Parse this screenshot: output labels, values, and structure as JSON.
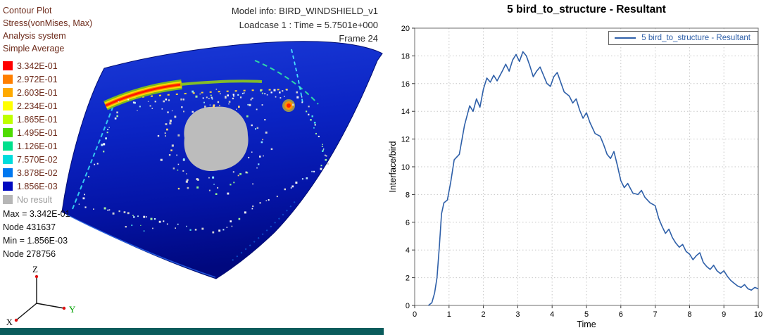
{
  "left_panel": {
    "header_lines": [
      "Contour Plot",
      "Stress(vonMises, Max)",
      "Analysis system",
      "Simple Average"
    ],
    "text_color": "#6e2c1c",
    "legend": {
      "entries": [
        {
          "color": "#ff0000",
          "value": "3.342E-01"
        },
        {
          "color": "#ff7f00",
          "value": "2.972E-01"
        },
        {
          "color": "#ffaa00",
          "value": "2.603E-01"
        },
        {
          "color": "#ffff00",
          "value": "2.234E-01"
        },
        {
          "color": "#bfff00",
          "value": "1.865E-01"
        },
        {
          "color": "#4fdc00",
          "value": "1.495E-01"
        },
        {
          "color": "#00e08c",
          "value": "1.126E-01"
        },
        {
          "color": "#00dcdc",
          "value": "7.570E-02"
        },
        {
          "color": "#0078f0",
          "value": "3.878E-02"
        },
        {
          "color": "#0008c0",
          "value": "1.856E-03"
        }
      ],
      "no_result": {
        "color": "#b6b6b6",
        "label": "No result",
        "text_color": "#9b9b9b"
      }
    },
    "stats_lines": [
      "Max = 3.342E-01",
      "Node 431637",
      "Min = 1.856E-03",
      "Node 278756"
    ],
    "model_info_lines": [
      "Model info: BIRD_WINDSHIELD_v1",
      "Loadcase 1 : Time = 5.7501e+000",
      "Frame 24"
    ],
    "triad": {
      "x_label": "X",
      "y_label": "Y",
      "z_label": "Z",
      "y_color": "#00a000"
    },
    "bottom_bar_color": "#0a5c5c"
  },
  "chart_data": {
    "type": "line",
    "title": "5 bird_to_structure - Resultant",
    "xlabel": "Time",
    "ylabel": "Interface/bird",
    "xlim": [
      0,
      10
    ],
    "ylim": [
      0,
      20
    ],
    "xticks": [
      0,
      1,
      2,
      3,
      4,
      5,
      6,
      7,
      8,
      9,
      10
    ],
    "yticks": [
      0,
      2,
      4,
      6,
      8,
      10,
      12,
      14,
      16,
      18,
      20
    ],
    "grid": true,
    "legend_position": "top-right",
    "series": [
      {
        "name": "5 bird_to_structure - Resultant",
        "color": "#2e5fa8",
        "points": [
          [
            0.4,
            0.0
          ],
          [
            0.5,
            0.2
          ],
          [
            0.58,
            0.9
          ],
          [
            0.65,
            2.0
          ],
          [
            0.72,
            4.3
          ],
          [
            0.78,
            6.6
          ],
          [
            0.85,
            7.4
          ],
          [
            0.95,
            7.6
          ],
          [
            1.05,
            8.9
          ],
          [
            1.15,
            10.5
          ],
          [
            1.3,
            10.9
          ],
          [
            1.45,
            13.0
          ],
          [
            1.6,
            14.4
          ],
          [
            1.7,
            14.0
          ],
          [
            1.8,
            14.9
          ],
          [
            1.9,
            14.3
          ],
          [
            2.0,
            15.6
          ],
          [
            2.1,
            16.4
          ],
          [
            2.2,
            16.1
          ],
          [
            2.3,
            16.6
          ],
          [
            2.4,
            16.2
          ],
          [
            2.55,
            16.9
          ],
          [
            2.65,
            17.4
          ],
          [
            2.75,
            16.9
          ],
          [
            2.85,
            17.7
          ],
          [
            2.95,
            18.1
          ],
          [
            3.05,
            17.6
          ],
          [
            3.15,
            18.3
          ],
          [
            3.25,
            18.0
          ],
          [
            3.35,
            17.3
          ],
          [
            3.45,
            16.5
          ],
          [
            3.55,
            16.9
          ],
          [
            3.65,
            17.2
          ],
          [
            3.75,
            16.6
          ],
          [
            3.85,
            16.0
          ],
          [
            3.95,
            15.8
          ],
          [
            4.05,
            16.5
          ],
          [
            4.15,
            16.8
          ],
          [
            4.25,
            16.1
          ],
          [
            4.35,
            15.4
          ],
          [
            4.5,
            15.1
          ],
          [
            4.6,
            14.6
          ],
          [
            4.7,
            14.9
          ],
          [
            4.8,
            14.1
          ],
          [
            4.9,
            13.5
          ],
          [
            5.0,
            13.9
          ],
          [
            5.1,
            13.2
          ],
          [
            5.25,
            12.4
          ],
          [
            5.4,
            12.2
          ],
          [
            5.5,
            11.6
          ],
          [
            5.6,
            10.9
          ],
          [
            5.7,
            10.6
          ],
          [
            5.8,
            11.1
          ],
          [
            5.9,
            10.1
          ],
          [
            6.0,
            9.0
          ],
          [
            6.1,
            8.5
          ],
          [
            6.2,
            8.8
          ],
          [
            6.35,
            8.1
          ],
          [
            6.5,
            8.0
          ],
          [
            6.6,
            8.3
          ],
          [
            6.7,
            7.8
          ],
          [
            6.85,
            7.4
          ],
          [
            7.0,
            7.2
          ],
          [
            7.1,
            6.3
          ],
          [
            7.2,
            5.7
          ],
          [
            7.3,
            5.2
          ],
          [
            7.4,
            5.5
          ],
          [
            7.5,
            4.9
          ],
          [
            7.6,
            4.5
          ],
          [
            7.7,
            4.2
          ],
          [
            7.8,
            4.4
          ],
          [
            7.9,
            3.9
          ],
          [
            8.0,
            3.7
          ],
          [
            8.1,
            3.3
          ],
          [
            8.2,
            3.6
          ],
          [
            8.3,
            3.8
          ],
          [
            8.4,
            3.1
          ],
          [
            8.5,
            2.8
          ],
          [
            8.6,
            2.6
          ],
          [
            8.7,
            2.9
          ],
          [
            8.8,
            2.5
          ],
          [
            8.9,
            2.3
          ],
          [
            9.0,
            2.5
          ],
          [
            9.1,
            2.1
          ],
          [
            9.2,
            1.8
          ],
          [
            9.3,
            1.6
          ],
          [
            9.4,
            1.4
          ],
          [
            9.5,
            1.3
          ],
          [
            9.6,
            1.5
          ],
          [
            9.7,
            1.2
          ],
          [
            9.8,
            1.1
          ],
          [
            9.9,
            1.3
          ],
          [
            10.0,
            1.2
          ]
        ]
      }
    ]
  }
}
